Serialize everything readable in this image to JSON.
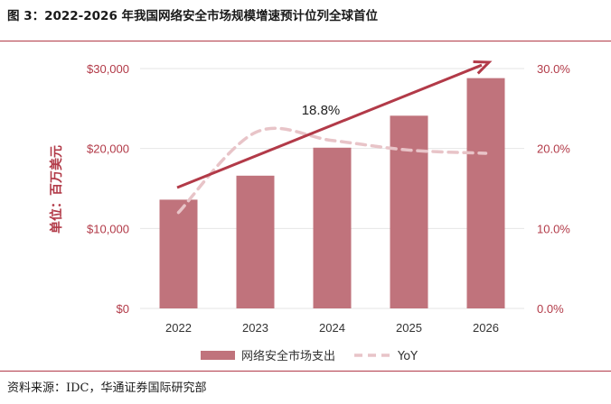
{
  "header": {
    "title": "图 3：2022-2026 年我国网络安全市场规模增速预计位列全球首位"
  },
  "footer": {
    "source": "资料来源：IDC，华通证券国际研究部"
  },
  "colors": {
    "bar": "#c0737c",
    "line": "#e8c4c8",
    "arrow": "#b23a48",
    "grid": "#e6e6e6",
    "axis_text": "#b23a48"
  },
  "chart_data": {
    "type": "bar",
    "categories": [
      "2022",
      "2023",
      "2024",
      "2025",
      "2026"
    ],
    "series": [
      {
        "name": "网络安全市场支出",
        "type": "bar",
        "axis": "left",
        "values": [
          13600,
          16600,
          20100,
          24100,
          28800
        ]
      },
      {
        "name": "YoY",
        "type": "line",
        "style": "dashed",
        "axis": "right",
        "values": [
          12.0,
          22.0,
          21.0,
          19.8,
          19.4
        ]
      }
    ],
    "ylabel": "单位：百万美元",
    "left_axis": {
      "ticks": [
        "$0",
        "$10,000",
        "$20,000",
        "$30,000"
      ],
      "ylim": [
        0,
        30000
      ]
    },
    "right_axis": {
      "ticks": [
        "0.0%",
        "10.0%",
        "20.0%",
        "30.0%"
      ],
      "ylim": [
        0,
        30
      ]
    },
    "annotations": [
      "18.8%"
    ],
    "grid": true,
    "legend_placement": "bottom"
  }
}
